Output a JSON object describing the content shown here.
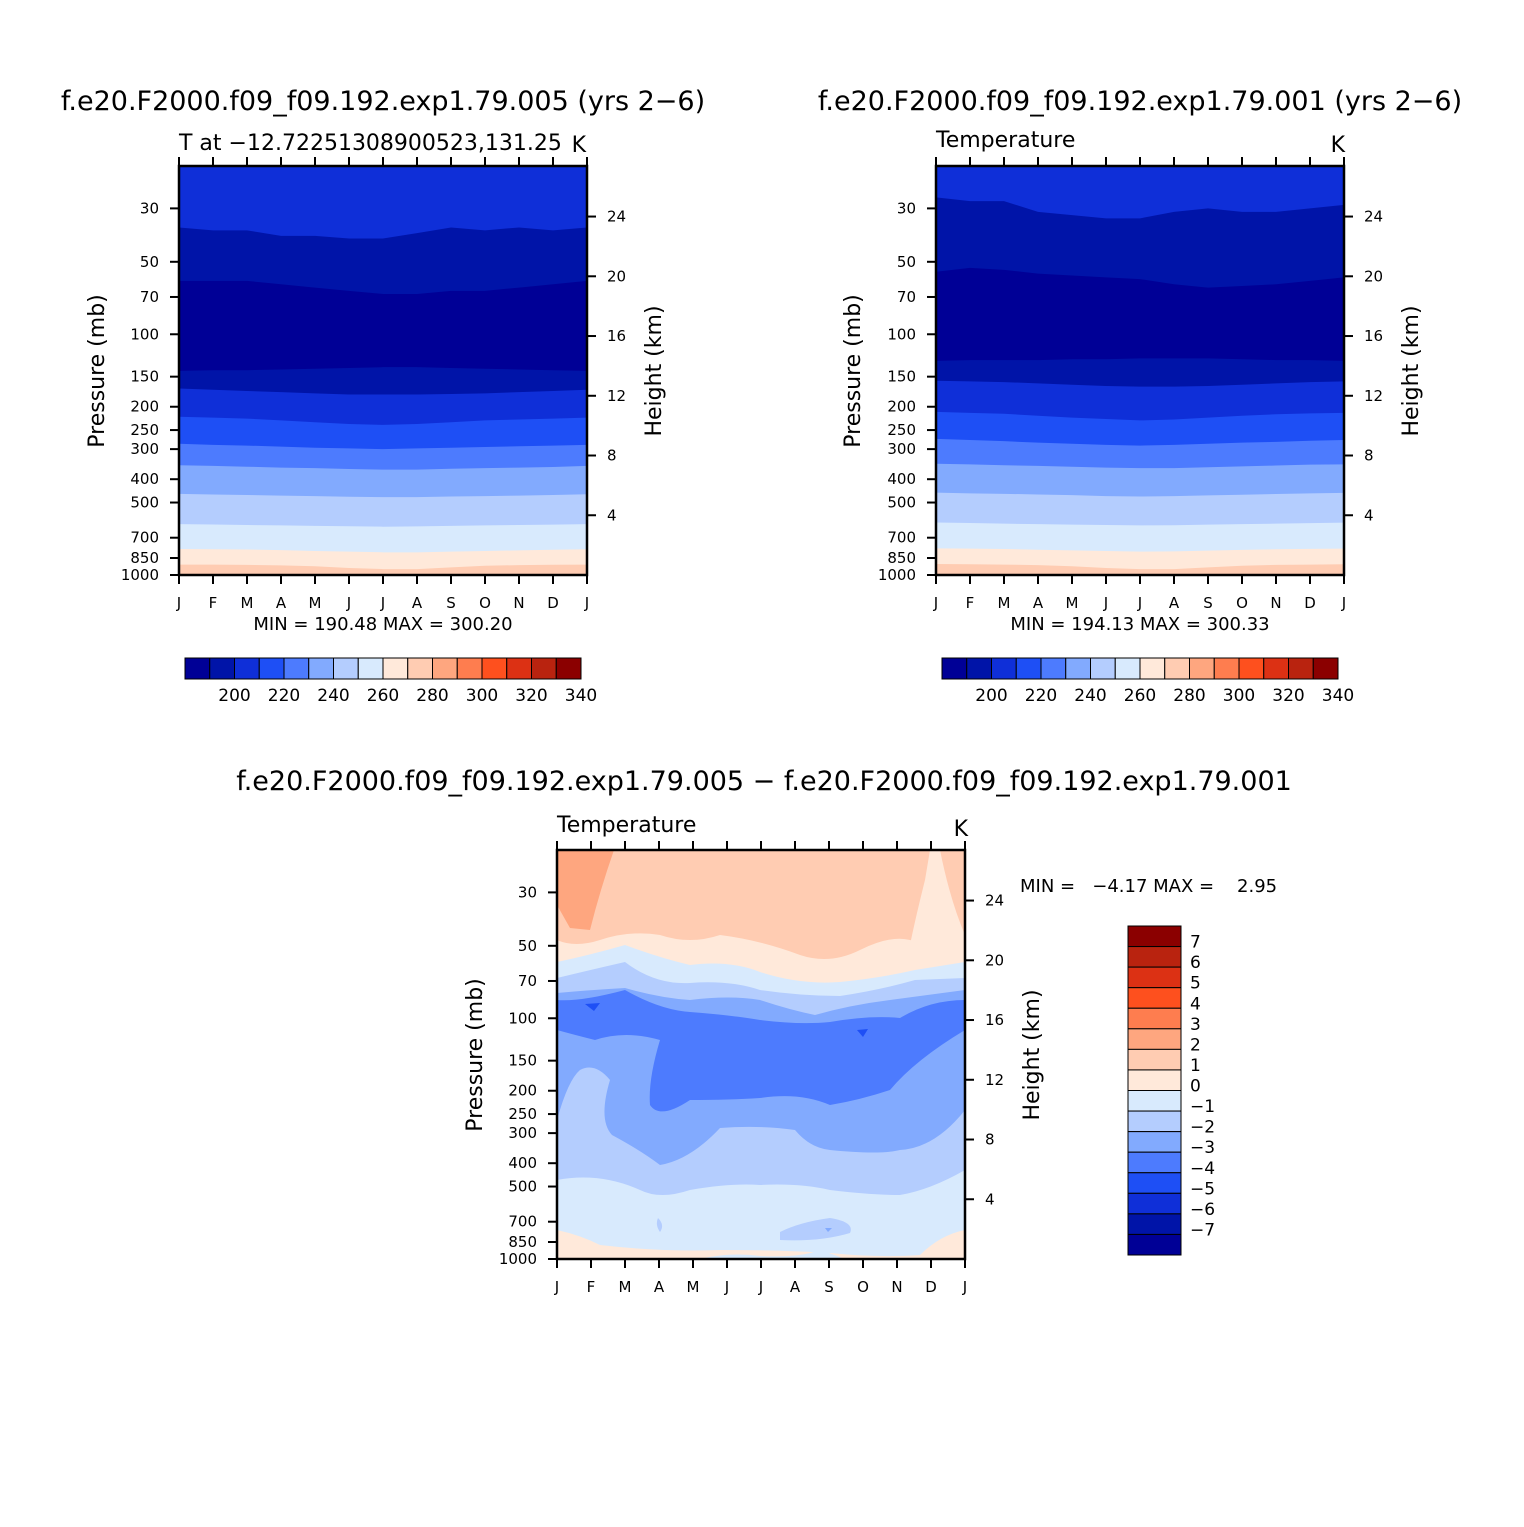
{
  "chart_data": [
    {
      "type": "heatmap",
      "subtype": "filled-contour",
      "title": "f.e20.F2000.f09_f09.192.exp1.79.005 (yrs 2−6)",
      "left_label": "T at −12.72251308900523,131.25",
      "right_label": "K",
      "ylabel": "Pressure (mb)",
      "y2label": "Height (km)",
      "x_ticks": [
        "J",
        "F",
        "M",
        "A",
        "M",
        "J",
        "J",
        "A",
        "S",
        "O",
        "N",
        "D",
        "J"
      ],
      "y_ticks": [
        30,
        50,
        70,
        100,
        150,
        200,
        250,
        300,
        400,
        500,
        700,
        850,
        1000
      ],
      "ylim": [
        1000,
        20
      ],
      "y2_ticks": [
        4,
        8,
        12,
        16,
        20,
        24
      ],
      "min_max_text": "MIN = 190.48  MAX = 300.20",
      "colorbar_labels": [
        "200",
        "220",
        "240",
        "260",
        "280",
        "300",
        "320",
        "340"
      ],
      "colorbar_levels": [
        190,
        195,
        200,
        205,
        210,
        215,
        220,
        225,
        230,
        235,
        240,
        245,
        250,
        255,
        260,
        265,
        270,
        275,
        280,
        285,
        290,
        295,
        300,
        305,
        310,
        315,
        320,
        325,
        330,
        335,
        340,
        345
      ],
      "contour_levels_k": [
        200,
        210,
        220,
        230,
        240,
        250,
        260,
        270,
        280,
        290
      ],
      "band_boundaries_mb": [
        [
          36,
          37,
          37,
          39,
          39,
          40,
          40,
          38,
          36,
          37,
          36,
          37,
          36
        ],
        [
          60,
          60,
          60,
          62,
          64,
          66,
          68,
          68,
          66,
          66,
          64,
          62,
          60
        ],
        [
          142,
          141,
          141,
          140,
          139,
          138,
          137,
          137,
          138,
          139,
          140,
          141,
          142
        ],
        [
          168,
          170,
          172,
          174,
          176,
          178,
          178,
          178,
          177,
          176,
          174,
          172,
          170
        ],
        [
          220,
          222,
          224,
          228,
          232,
          236,
          238,
          236,
          232,
          228,
          226,
          224,
          222
        ],
        [
          285,
          288,
          290,
          293,
          296,
          298,
          300,
          298,
          296,
          294,
          292,
          290,
          288
        ],
        [
          350,
          352,
          355,
          358,
          360,
          363,
          365,
          365,
          362,
          360,
          358,
          356,
          352
        ],
        [
          460,
          463,
          465,
          468,
          470,
          473,
          475,
          475,
          472,
          470,
          468,
          465,
          462
        ],
        [
          615,
          617,
          620,
          622,
          625,
          627,
          630,
          628,
          625,
          622,
          620,
          618,
          615
        ],
        [
          780,
          782,
          784,
          788,
          795,
          800,
          805,
          805,
          800,
          795,
          790,
          785,
          782
        ],
        [
          905,
          906,
          908,
          912,
          920,
          935,
          945,
          945,
          930,
          915,
          910,
          907,
          905
        ]
      ]
    },
    {
      "type": "heatmap",
      "subtype": "filled-contour",
      "title": "f.e20.F2000.f09_f09.192.exp1.79.001 (yrs 2−6)",
      "left_label": "Temperature",
      "right_label": "K",
      "ylabel": "Pressure (mb)",
      "y2label": "Height (km)",
      "x_ticks": [
        "J",
        "F",
        "M",
        "A",
        "M",
        "J",
        "J",
        "A",
        "S",
        "O",
        "N",
        "D",
        "J"
      ],
      "y_ticks": [
        30,
        50,
        70,
        100,
        150,
        200,
        250,
        300,
        400,
        500,
        700,
        850,
        1000
      ],
      "ylim": [
        1000,
        20
      ],
      "y2_ticks": [
        4,
        8,
        12,
        16,
        20,
        24
      ],
      "min_max_text": "MIN = 194.13  MAX = 300.33",
      "colorbar_labels": [
        "200",
        "220",
        "240",
        "260",
        "280",
        "300",
        "320",
        "340"
      ],
      "colorbar_levels": [
        190,
        195,
        200,
        205,
        210,
        215,
        220,
        225,
        230,
        235,
        240,
        245,
        250,
        255,
        260,
        265,
        270,
        275,
        280,
        285,
        290,
        295,
        300,
        305,
        310,
        315,
        320,
        325,
        330,
        335,
        340,
        345
      ],
      "contour_levels_k": [
        200,
        210,
        220,
        230,
        240,
        250,
        260,
        270,
        280,
        290
      ],
      "band_boundaries_mb": [
        [
          27,
          28,
          28,
          31,
          32,
          33,
          33,
          31,
          30,
          31,
          31,
          30,
          29
        ],
        [
          55,
          53,
          54,
          56,
          57,
          58,
          59,
          62,
          64,
          63,
          62,
          60,
          58
        ],
        [
          129,
          128,
          128,
          128,
          127,
          127,
          126,
          126,
          126,
          127,
          128,
          128,
          129
        ],
        [
          156,
          157,
          158,
          160,
          162,
          164,
          165,
          165,
          164,
          162,
          160,
          158,
          157
        ],
        [
          210,
          212,
          214,
          218,
          222,
          225,
          228,
          226,
          222,
          218,
          215,
          213,
          212
        ],
        [
          272,
          275,
          278,
          282,
          285,
          288,
          290,
          288,
          285,
          282,
          280,
          277,
          275
        ],
        [
          345,
          347,
          350,
          352,
          355,
          358,
          360,
          360,
          357,
          354,
          351,
          348,
          347
        ],
        [
          455,
          458,
          460,
          463,
          466,
          470,
          472,
          470,
          467,
          464,
          461,
          458,
          456
        ],
        [
          605,
          608,
          612,
          615,
          618,
          620,
          622,
          621,
          618,
          615,
          612,
          609,
          606
        ],
        [
          775,
          777,
          780,
          785,
          790,
          795,
          800,
          798,
          792,
          786,
          782,
          779,
          777
        ],
        [
          900,
          902,
          905,
          910,
          920,
          935,
          945,
          945,
          930,
          915,
          908,
          905,
          902
        ]
      ]
    },
    {
      "type": "heatmap",
      "subtype": "filled-contour",
      "title": "f.e20.F2000.f09_f09.192.exp1.79.005 − f.e20.F2000.f09_f09.192.exp1.79.001",
      "left_label": "Temperature",
      "right_label": "K",
      "ylabel": "Pressure (mb)",
      "y2label": "Height (km)",
      "x_ticks": [
        "J",
        "F",
        "M",
        "A",
        "M",
        "J",
        "J",
        "A",
        "S",
        "O",
        "N",
        "D",
        "J"
      ],
      "y_ticks": [
        30,
        50,
        70,
        100,
        150,
        200,
        250,
        300,
        400,
        500,
        700,
        850,
        1000
      ],
      "ylim": [
        1000,
        20
      ],
      "y2_ticks": [
        4,
        8,
        12,
        16,
        20,
        24
      ],
      "min_max_text": "MIN =   −4.17 MAX =    2.95",
      "colorbar_labels": [
        "7",
        "6",
        "5",
        "4",
        "3",
        "2",
        "1",
        "0",
        "−1",
        "−2",
        "−3",
        "−4",
        "−5",
        "−6",
        "−7"
      ],
      "colorbar_levels": [
        8,
        7,
        6,
        5,
        4,
        3,
        2,
        1,
        0,
        -1,
        -2,
        -3,
        -4,
        -5,
        -6,
        -7,
        -8
      ]
    }
  ]
}
